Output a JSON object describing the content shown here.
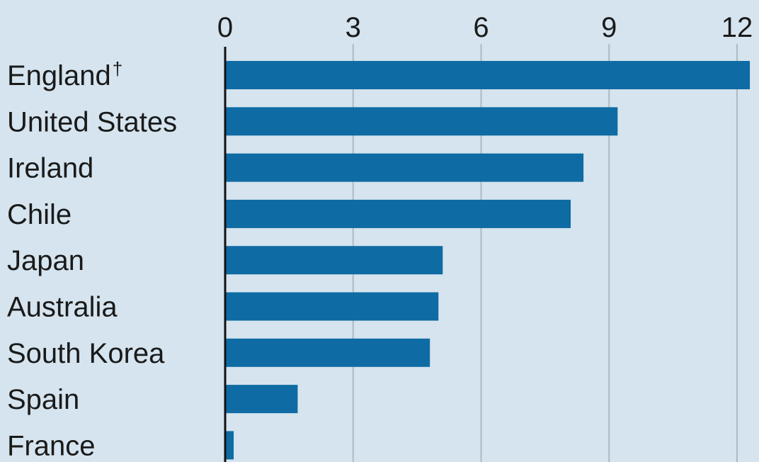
{
  "chart_data": {
    "type": "bar",
    "orientation": "horizontal",
    "categories": [
      "England",
      "United States",
      "Ireland",
      "Chile",
      "Japan",
      "Australia",
      "South Korea",
      "Spain",
      "France"
    ],
    "category_markers": [
      "†",
      "",
      "",
      "",
      "",
      "",
      "",
      "",
      ""
    ],
    "values": [
      12.3,
      9.2,
      8.4,
      8.1,
      5.1,
      5.0,
      4.8,
      1.7,
      0.2
    ],
    "xlim": [
      0,
      12
    ],
    "x_ticks": [
      0,
      3,
      6,
      9,
      12
    ],
    "x_tick_labels": [
      "0",
      "3",
      "6",
      "9",
      "12"
    ],
    "grid": "vertical",
    "axis_position": "top",
    "colors": {
      "background": "#d5e4ee",
      "bar": "#0f6ba3",
      "grid": "#aebac2",
      "axis": "#111111",
      "text": "#1a1a1a"
    }
  }
}
